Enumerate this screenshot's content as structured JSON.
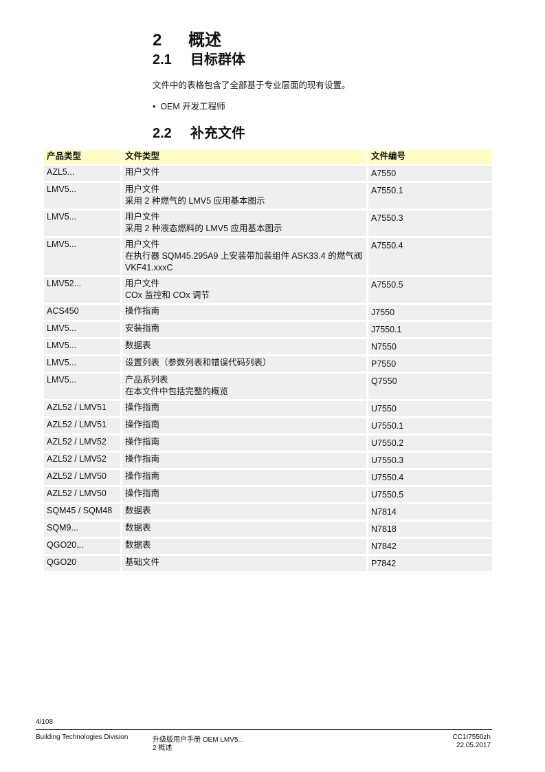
{
  "heading1": {
    "number": "2",
    "title": "概述"
  },
  "section1": {
    "number": "2.1",
    "title": "目标群体"
  },
  "paragraph": "文件中的表格包含了全部基于专业层面的现有设置。",
  "bullet": "OEM 开发工程师",
  "section2": {
    "number": "2.2",
    "title": "补充文件"
  },
  "table": {
    "headers": [
      "产品类型",
      "文件类型",
      "文件编号"
    ],
    "rows": [
      {
        "product": "AZL5...",
        "type": [
          "用户文件"
        ],
        "doc": "A7550"
      },
      {
        "product": "LMV5...",
        "type": [
          "用户文件",
          "采用 2 种燃气的 LMV5 应用基本图示"
        ],
        "doc": "A7550.1"
      },
      {
        "product": "LMV5...",
        "type": [
          "用户文件",
          "采用 2 种液态燃料的 LMV5 应用基本图示"
        ],
        "doc": "A7550.3"
      },
      {
        "product": "LMV5...",
        "type": [
          "用户文件",
          "在执行器 SQM45.295A9 上安装带加装组件 ASK33.4 的燃气阀 VKF41.xxxC"
        ],
        "doc": "A7550.4"
      },
      {
        "product": "LMV52...",
        "type": [
          "用户文件",
          "COx 监控和 COx 调节"
        ],
        "doc": "A7550.5"
      },
      {
        "product": "ACS450",
        "type": [
          "操作指南"
        ],
        "doc": "J7550"
      },
      {
        "product": "LMV5...",
        "type": [
          "安装指南"
        ],
        "doc": "J7550.1"
      },
      {
        "product": "LMV5...",
        "type": [
          "数据表"
        ],
        "doc": "N7550"
      },
      {
        "product": "LMV5...",
        "type": [
          "设置列表（参数列表和错误代码列表）"
        ],
        "doc": "P7550"
      },
      {
        "product": "LMV5...",
        "type": [
          "产品系列表",
          "在本文件中包括完整的概览"
        ],
        "doc": "Q7550"
      },
      {
        "product": "AZL52 / LMV51",
        "type": [
          "操作指南"
        ],
        "doc": "U7550"
      },
      {
        "product": "AZL52 / LMV51",
        "type": [
          "操作指南"
        ],
        "doc": "U7550.1"
      },
      {
        "product": "AZL52 / LMV52",
        "type": [
          "操作指南"
        ],
        "doc": "U7550.2"
      },
      {
        "product": "AZL52 / LMV52",
        "type": [
          "操作指南"
        ],
        "doc": "U7550.3"
      },
      {
        "product": "AZL52 / LMV50",
        "type": [
          "操作指南"
        ],
        "doc": "U7550.4"
      },
      {
        "product": "AZL52 / LMV50",
        "type": [
          "操作指南"
        ],
        "doc": "U7550.5"
      },
      {
        "product": "SQM45 / SQM48",
        "type": [
          "数据表"
        ],
        "doc": "N7814"
      },
      {
        "product": "SQM9...",
        "type": [
          "数据表"
        ],
        "doc": "N7818"
      },
      {
        "product": "QGO20...",
        "type": [
          "数据表"
        ],
        "doc": "N7842"
      },
      {
        "product": "QGO20",
        "type": [
          "基础文件"
        ],
        "doc": "P7842"
      }
    ]
  },
  "footer": {
    "page": "4/108",
    "division": "Building Technologies Division",
    "doc_title": "升级版用户手册 OEM LMV5...",
    "chapter": "2 概述",
    "doc_id": "CC1I7550zh",
    "date": "22.05.2017"
  },
  "colors": {
    "header_bg": "#ffffc4",
    "row_bg": "#efefef"
  }
}
